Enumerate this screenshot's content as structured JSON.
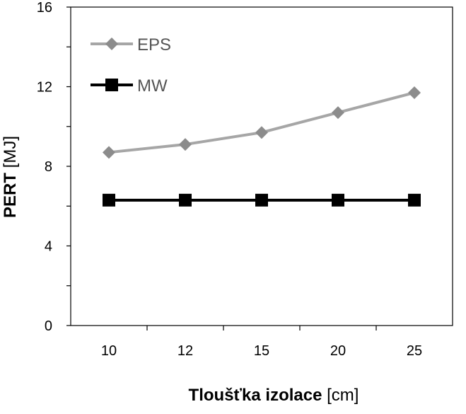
{
  "chart_data": {
    "type": "line",
    "categories": [
      "10",
      "12",
      "15",
      "20",
      "25"
    ],
    "series": [
      {
        "name": "EPS",
        "values": [
          8.7,
          9.1,
          9.7,
          10.7,
          11.7
        ],
        "color": "#a6a6a6",
        "marker_color": "#8c8c8c",
        "marker": "diamond"
      },
      {
        "name": "MW",
        "values": [
          6.3,
          6.3,
          6.3,
          6.3,
          6.3
        ],
        "color": "#000000",
        "marker_color": "#000000",
        "marker": "square"
      }
    ],
    "xlabel_bold": "Tloušťka izolace",
    "xlabel_unit": "[cm]",
    "ylabel_bold": "PERT",
    "ylabel_unit": "[MJ]",
    "ylim": [
      0,
      16
    ],
    "yticks": [
      "0",
      "4",
      "8",
      "12",
      "16"
    ],
    "grid": false,
    "legend_position": "top-left"
  }
}
